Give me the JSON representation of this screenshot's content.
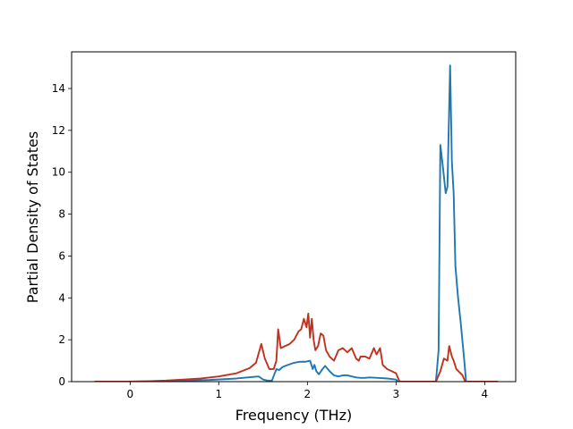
{
  "chart_data": {
    "type": "line",
    "title": "",
    "xlabel": "Frequency (THz)",
    "ylabel": "Partial Density of States",
    "xlim": [
      -0.66,
      4.35
    ],
    "ylim": [
      0,
      15.75
    ],
    "xticks": [
      0,
      1,
      2,
      3,
      4
    ],
    "yticks": [
      0,
      2,
      4,
      6,
      8,
      10,
      12,
      14
    ],
    "xtick_labels": [
      "0",
      "1",
      "2",
      "3",
      "4"
    ],
    "ytick_labels": [
      "0",
      "2",
      "4",
      "6",
      "8",
      "10",
      "12",
      "14"
    ],
    "grid": false,
    "legend": null,
    "series": [
      {
        "color": "#1f77b4",
        "x": [
          -0.4,
          0.0,
          0.3,
          0.6,
          0.9,
          1.2,
          1.45,
          1.5,
          1.55,
          1.6,
          1.65,
          1.68,
          1.72,
          1.78,
          1.85,
          1.92,
          1.98,
          2.03,
          2.06,
          2.08,
          2.1,
          2.13,
          2.17,
          2.2,
          2.25,
          2.3,
          2.35,
          2.4,
          2.45,
          2.5,
          2.55,
          2.6,
          2.65,
          2.7,
          2.8,
          2.9,
          3.0,
          3.02,
          3.05,
          3.45,
          3.48,
          3.5,
          3.53,
          3.56,
          3.58,
          3.61,
          3.63,
          3.65,
          3.67,
          3.7,
          3.73,
          3.77,
          3.79,
          4.15
        ],
        "values": [
          0.0,
          0.0,
          0.02,
          0.05,
          0.08,
          0.15,
          0.25,
          0.1,
          0.05,
          0.05,
          0.6,
          0.55,
          0.7,
          0.8,
          0.9,
          0.95,
          0.95,
          1.0,
          0.6,
          0.8,
          0.5,
          0.35,
          0.6,
          0.75,
          0.5,
          0.3,
          0.25,
          0.3,
          0.3,
          0.25,
          0.2,
          0.18,
          0.18,
          0.2,
          0.18,
          0.15,
          0.1,
          0.0,
          0.0,
          0.0,
          1.5,
          11.3,
          10.2,
          9.0,
          9.3,
          15.1,
          10.5,
          9.0,
          5.5,
          4.0,
          2.8,
          1.0,
          0.0,
          0.0
        ]
      },
      {
        "color": "#c0321e",
        "x": [
          -0.4,
          0.0,
          0.2,
          0.4,
          0.6,
          0.8,
          1.0,
          1.2,
          1.35,
          1.42,
          1.48,
          1.52,
          1.57,
          1.62,
          1.65,
          1.67,
          1.7,
          1.75,
          1.8,
          1.85,
          1.9,
          1.93,
          1.96,
          1.99,
          2.01,
          2.03,
          2.05,
          2.07,
          2.09,
          2.12,
          2.15,
          2.18,
          2.21,
          2.25,
          2.3,
          2.35,
          2.4,
          2.45,
          2.5,
          2.55,
          2.58,
          2.6,
          2.65,
          2.7,
          2.75,
          2.78,
          2.82,
          2.85,
          2.9,
          3.0,
          3.04,
          3.08,
          3.45,
          3.5,
          3.54,
          3.58,
          3.6,
          3.63,
          3.65,
          3.68,
          3.75,
          3.78,
          4.15
        ],
        "values": [
          0.0,
          0.0,
          0.02,
          0.05,
          0.1,
          0.15,
          0.25,
          0.4,
          0.65,
          0.9,
          1.8,
          1.1,
          0.6,
          0.6,
          1.0,
          2.5,
          1.6,
          1.7,
          1.8,
          2.0,
          2.4,
          2.5,
          3.0,
          2.6,
          3.25,
          2.1,
          3.0,
          2.0,
          1.5,
          1.7,
          2.3,
          2.2,
          1.5,
          1.2,
          1.0,
          1.5,
          1.6,
          1.4,
          1.6,
          1.1,
          1.0,
          1.2,
          1.2,
          1.1,
          1.6,
          1.3,
          1.6,
          0.8,
          0.6,
          0.4,
          0.0,
          0.0,
          0.0,
          0.5,
          1.1,
          1.0,
          1.7,
          1.2,
          1.0,
          0.6,
          0.3,
          0.0,
          0.0
        ]
      }
    ]
  }
}
